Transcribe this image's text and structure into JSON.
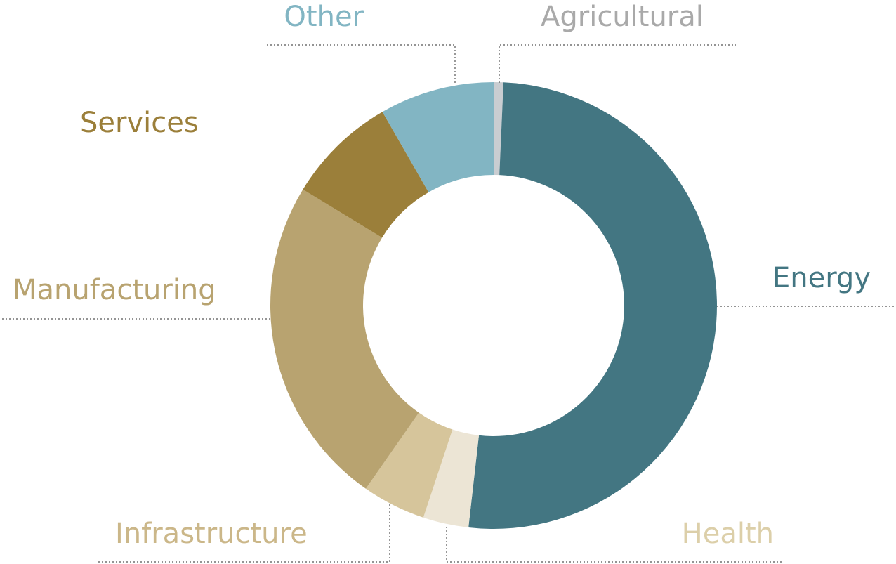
{
  "chart_data": {
    "type": "donut",
    "categories": [
      "Agricultural",
      "Energy",
      "Health",
      "Infrastructure",
      "Manufacturing",
      "Services",
      "Other"
    ],
    "values": [
      0.7,
      51.1,
      3.3,
      4.6,
      24,
      8,
      8.3
    ],
    "colors": [
      "#c9cdd1",
      "#437682",
      "#ece5d5",
      "#d6c59b",
      "#b8a370",
      "#9b7f3a",
      "#82b5c3"
    ]
  }
}
